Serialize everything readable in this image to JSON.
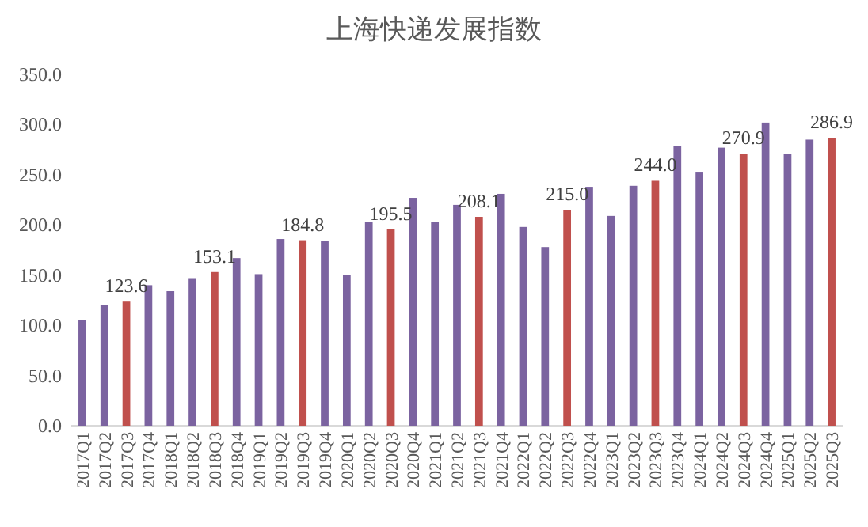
{
  "chart_data": {
    "type": "bar",
    "title": "上海快递发展指数",
    "categories": [
      "2017Q1",
      "2017Q2",
      "2017Q3",
      "2017Q4",
      "2018Q1",
      "2018Q2",
      "2018Q3",
      "2018Q4",
      "2019Q1",
      "2019Q2",
      "2019Q3",
      "2019Q4",
      "2020Q1",
      "2020Q2",
      "2020Q3",
      "2020Q4",
      "2021Q1",
      "2021Q2",
      "2021Q3",
      "2021Q4",
      "2022Q1",
      "2022Q2",
      "2022Q3",
      "2022Q4",
      "2023Q1",
      "2023Q2",
      "2023Q3",
      "2023Q4",
      "2024Q1",
      "2024Q2",
      "2024Q3",
      "2024Q4",
      "2025Q1",
      "2025Q2",
      "2025Q3"
    ],
    "values": [
      105,
      120,
      123.6,
      140,
      134,
      147,
      153.1,
      167,
      151,
      186,
      184.8,
      184,
      150,
      203,
      195.5,
      227,
      203,
      220,
      208.1,
      231,
      198,
      178,
      215.0,
      238,
      209,
      239,
      244.0,
      279,
      253,
      277,
      270.9,
      302,
      271,
      285,
      286.9
    ],
    "colors": [
      "#7b63a0",
      "#7b63a0",
      "#c0504d",
      "#7b63a0",
      "#7b63a0",
      "#7b63a0",
      "#c0504d",
      "#7b63a0",
      "#7b63a0",
      "#7b63a0",
      "#c0504d",
      "#7b63a0",
      "#7b63a0",
      "#7b63a0",
      "#c0504d",
      "#7b63a0",
      "#7b63a0",
      "#7b63a0",
      "#c0504d",
      "#7b63a0",
      "#7b63a0",
      "#7b63a0",
      "#c0504d",
      "#7b63a0",
      "#7b63a0",
      "#7b63a0",
      "#c0504d",
      "#7b63a0",
      "#7b63a0",
      "#7b63a0",
      "#c0504d",
      "#7b63a0",
      "#7b63a0",
      "#7b63a0",
      "#c0504d"
    ],
    "value_labels": [
      null,
      null,
      "123.6",
      null,
      null,
      null,
      "153.1",
      null,
      null,
      null,
      "184.8",
      null,
      null,
      null,
      "195.5",
      null,
      null,
      null,
      "208.1",
      null,
      null,
      null,
      "215.0",
      null,
      null,
      null,
      "244.0",
      null,
      null,
      null,
      "270.9",
      null,
      null,
      null,
      "286.9"
    ],
    "ylim": [
      0,
      350
    ],
    "yticks": [
      {
        "value": 0,
        "label": "0.0"
      },
      {
        "value": 50,
        "label": "50.0"
      },
      {
        "value": 100,
        "label": "100.0"
      },
      {
        "value": 150,
        "label": "150.0"
      },
      {
        "value": 200,
        "label": "200.0"
      },
      {
        "value": 250,
        "label": "250.0"
      },
      {
        "value": 300,
        "label": "300.0"
      },
      {
        "value": 350,
        "label": "350.0"
      }
    ]
  }
}
